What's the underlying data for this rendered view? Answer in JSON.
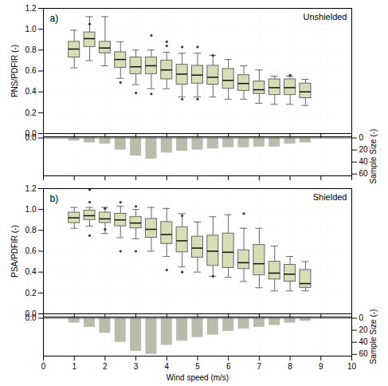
{
  "chart_data": [
    {
      "type": "box",
      "title": "Unshielded",
      "annotations": [
        {
          "text": "a)"
        }
      ],
      "ylabel": "PNS/PDFIR (-)",
      "color": "#d8ddb5",
      "x": [
        1.0,
        1.5,
        2.0,
        2.5,
        3.0,
        3.5,
        4.0,
        4.5,
        5.0,
        5.5,
        6.0,
        6.5,
        7.0,
        7.5,
        8.0,
        8.5
      ],
      "boxes": [
        {
          "q1": 0.73,
          "median": 0.81,
          "q3": 0.88,
          "whisker_low": 0.63,
          "whisker_high": 0.99,
          "fliers": []
        },
        {
          "q1": 0.83,
          "median": 0.91,
          "q3": 0.97,
          "whisker_low": 0.7,
          "whisker_high": 1.12,
          "fliers": [
            1.05
          ]
        },
        {
          "q1": 0.77,
          "median": 0.82,
          "q3": 0.88,
          "whisker_low": 0.65,
          "whisker_high": 1.12,
          "fliers": []
        },
        {
          "q1": 0.63,
          "median": 0.71,
          "q3": 0.78,
          "whisker_low": 0.53,
          "whisker_high": 0.88,
          "fliers": [
            0.49
          ]
        },
        {
          "q1": 0.57,
          "median": 0.64,
          "q3": 0.73,
          "whisker_low": 0.47,
          "whisker_high": 0.8,
          "fliers": [
            0.39
          ]
        },
        {
          "q1": 0.57,
          "median": 0.65,
          "q3": 0.73,
          "whisker_low": 0.43,
          "whisker_high": 0.8,
          "fliers": [
            0.38,
            0.94
          ]
        },
        {
          "q1": 0.52,
          "median": 0.61,
          "q3": 0.7,
          "whisker_low": 0.43,
          "whisker_high": 0.78,
          "fliers": [
            0.84,
            0.88
          ]
        },
        {
          "q1": 0.47,
          "median": 0.57,
          "q3": 0.66,
          "whisker_low": 0.35,
          "whisker_high": 0.77,
          "fliers": [
            0.33,
            0.83
          ]
        },
        {
          "q1": 0.48,
          "median": 0.56,
          "q3": 0.65,
          "whisker_low": 0.35,
          "whisker_high": 0.77,
          "fliers": [
            0.33,
            0.83
          ]
        },
        {
          "q1": 0.47,
          "median": 0.54,
          "q3": 0.65,
          "whisker_low": 0.35,
          "whisker_high": 0.75,
          "fliers": [
            0.75
          ]
        },
        {
          "q1": 0.43,
          "median": 0.51,
          "q3": 0.62,
          "whisker_low": 0.33,
          "whisker_high": 0.71,
          "fliers": []
        },
        {
          "q1": 0.41,
          "median": 0.48,
          "q3": 0.56,
          "whisker_low": 0.33,
          "whisker_high": 0.65,
          "fliers": []
        },
        {
          "q1": 0.38,
          "median": 0.42,
          "q3": 0.5,
          "whisker_low": 0.29,
          "whisker_high": 0.61,
          "fliers": []
        },
        {
          "q1": 0.37,
          "median": 0.44,
          "q3": 0.52,
          "whisker_low": 0.28,
          "whisker_high": 0.55,
          "fliers": []
        },
        {
          "q1": 0.37,
          "median": 0.44,
          "q3": 0.52,
          "whisker_low": 0.28,
          "whisker_high": 0.55,
          "fliers": [
            0.56
          ]
        },
        {
          "q1": 0.34,
          "median": 0.4,
          "q3": 0.48,
          "whisker_low": 0.27,
          "whisker_high": 0.52,
          "fliers": []
        }
      ],
      "xlim": [
        0,
        10
      ],
      "xticks": [
        0,
        1,
        2,
        3,
        4,
        5,
        6,
        7,
        8,
        9,
        10
      ],
      "ylim": [
        0.0,
        1.2
      ],
      "yticks": [
        {
          "value": 0.0,
          "label": "0.0"
        },
        0.2,
        0.4,
        0.6,
        0.8,
        {
          "value": 1.0,
          "label": "1.0"
        },
        1.2
      ],
      "grid": true,
      "tick_labels": "y"
    },
    {
      "type": "bar",
      "x": [
        1.0,
        1.5,
        2.0,
        2.5,
        3.0,
        3.5,
        4.0,
        4.5,
        5.0,
        5.5,
        6.0,
        6.5,
        7.0,
        7.5,
        8.0,
        8.5
      ],
      "series": [
        {
          "values": [
            5,
            8,
            10,
            20,
            30,
            35,
            25,
            22,
            20,
            18,
            16,
            16,
            15,
            15,
            10,
            8
          ],
          "color": "#b8bcaa",
          "axis": "y2"
        }
      ],
      "xlim": [
        0,
        10
      ],
      "xticks": [
        0,
        1,
        2,
        3,
        4,
        5,
        6,
        7,
        8,
        9,
        10
      ],
      "ylim": [
        63,
        -2
      ],
      "yticks": [
        {
          "value": 0,
          "label": "0.0"
        }
      ],
      "y2label": "Sample Size (-)",
      "y2lim": [
        63,
        -2
      ],
      "y2ticks": [
        0,
        20,
        40,
        60
      ],
      "grid": "x",
      "tick_labels": "y"
    },
    {
      "type": "box",
      "title": "Shielded",
      "annotations": [
        {
          "text": "b)"
        }
      ],
      "ylabel": "PSA/PDFIR (-)",
      "color": "#d8ddb5",
      "x": [
        1.0,
        1.5,
        2.0,
        2.5,
        3.0,
        3.5,
        4.0,
        4.5,
        5.0,
        5.5,
        6.0,
        6.5,
        7.0,
        7.5,
        8.0,
        8.5
      ],
      "boxes": [
        {
          "q1": 0.87,
          "median": 0.92,
          "q3": 0.97,
          "whisker_low": 0.82,
          "whisker_high": 1.02,
          "fliers": []
        },
        {
          "q1": 0.9,
          "median": 0.94,
          "q3": 0.99,
          "whisker_low": 0.84,
          "whisker_high": 1.02,
          "fliers": [
            0.75,
            1.07,
            1.19
          ]
        },
        {
          "q1": 0.87,
          "median": 0.91,
          "q3": 0.97,
          "whisker_low": 0.77,
          "whisker_high": 1.02,
          "fliers": [
            0.81,
            1.01
          ]
        },
        {
          "q1": 0.84,
          "median": 0.9,
          "q3": 0.96,
          "whisker_low": 0.73,
          "whisker_high": 1.03,
          "fliers": [
            0.6,
            1.07
          ]
        },
        {
          "q1": 0.82,
          "median": 0.87,
          "q3": 0.93,
          "whisker_low": 0.72,
          "whisker_high": 1.0,
          "fliers": [
            0.6,
            1.03
          ]
        },
        {
          "q1": 0.73,
          "median": 0.81,
          "q3": 0.91,
          "whisker_low": 0.6,
          "whisker_high": 1.02,
          "fliers": []
        },
        {
          "q1": 0.67,
          "median": 0.76,
          "q3": 0.88,
          "whisker_low": 0.55,
          "whisker_high": 1.01,
          "fliers": [
            0.42
          ]
        },
        {
          "q1": 0.59,
          "median": 0.7,
          "q3": 0.83,
          "whisker_low": 0.45,
          "whisker_high": 0.96,
          "fliers": [
            0.4,
            0.94
          ]
        },
        {
          "q1": 0.54,
          "median": 0.63,
          "q3": 0.74,
          "whisker_low": 0.4,
          "whisker_high": 0.88,
          "fliers": []
        },
        {
          "q1": 0.46,
          "median": 0.6,
          "q3": 0.75,
          "whisker_low": 0.36,
          "whisker_high": 0.93,
          "fliers": [
            0.36
          ]
        },
        {
          "q1": 0.44,
          "median": 0.59,
          "q3": 0.77,
          "whisker_low": 0.35,
          "whisker_high": 0.95,
          "fliers": []
        },
        {
          "q1": 0.43,
          "median": 0.49,
          "q3": 0.61,
          "whisker_low": 0.31,
          "whisker_high": 0.82,
          "fliers": [
            0.96
          ]
        },
        {
          "q1": 0.37,
          "median": 0.48,
          "q3": 0.66,
          "whisker_low": 0.25,
          "whisker_high": 0.82,
          "fliers": []
        },
        {
          "q1": 0.33,
          "median": 0.39,
          "q3": 0.5,
          "whisker_low": 0.22,
          "whisker_high": 0.65,
          "fliers": []
        },
        {
          "q1": 0.31,
          "median": 0.38,
          "q3": 0.47,
          "whisker_low": 0.22,
          "whisker_high": 0.55,
          "fliers": []
        },
        {
          "q1": 0.25,
          "median": 0.29,
          "q3": 0.42,
          "whisker_low": 0.22,
          "whisker_high": 0.5,
          "fliers": []
        }
      ],
      "xlim": [
        0,
        10
      ],
      "xticks": [
        0,
        1,
        2,
        3,
        4,
        5,
        6,
        7,
        8,
        9,
        10
      ],
      "ylim": [
        0.0,
        1.2
      ],
      "yticks": [
        {
          "value": 0.0,
          "label": "0.0"
        },
        0.2,
        0.4,
        0.6,
        0.8,
        {
          "value": 1.0,
          "label": "1.0"
        },
        1.2
      ],
      "grid": true,
      "tick_labels": "y"
    },
    {
      "type": "bar",
      "xlabel": "Wind speed (m/s)",
      "x": [
        1.0,
        1.5,
        2.0,
        2.5,
        3.0,
        3.5,
        4.0,
        4.5,
        5.0,
        5.5,
        6.0,
        6.5,
        7.0,
        7.5,
        8.0,
        8.5
      ],
      "series": [
        {
          "values": [
            8,
            15,
            25,
            40,
            55,
            60,
            45,
            38,
            32,
            28,
            22,
            18,
            15,
            12,
            8,
            5
          ],
          "color": "#b8bcaa",
          "axis": "y2"
        }
      ],
      "xlim": [
        0,
        10
      ],
      "xticks": [
        0,
        1,
        2,
        3,
        4,
        5,
        6,
        7,
        8,
        9,
        10
      ],
      "ylim": [
        63,
        -2
      ],
      "yticks": [
        {
          "value": 0,
          "label": "0.0"
        }
      ],
      "y2label": "Sample Size (-)",
      "y2lim": [
        63,
        -2
      ],
      "y2ticks": [
        0,
        20,
        40,
        60
      ],
      "grid": "x"
    }
  ]
}
